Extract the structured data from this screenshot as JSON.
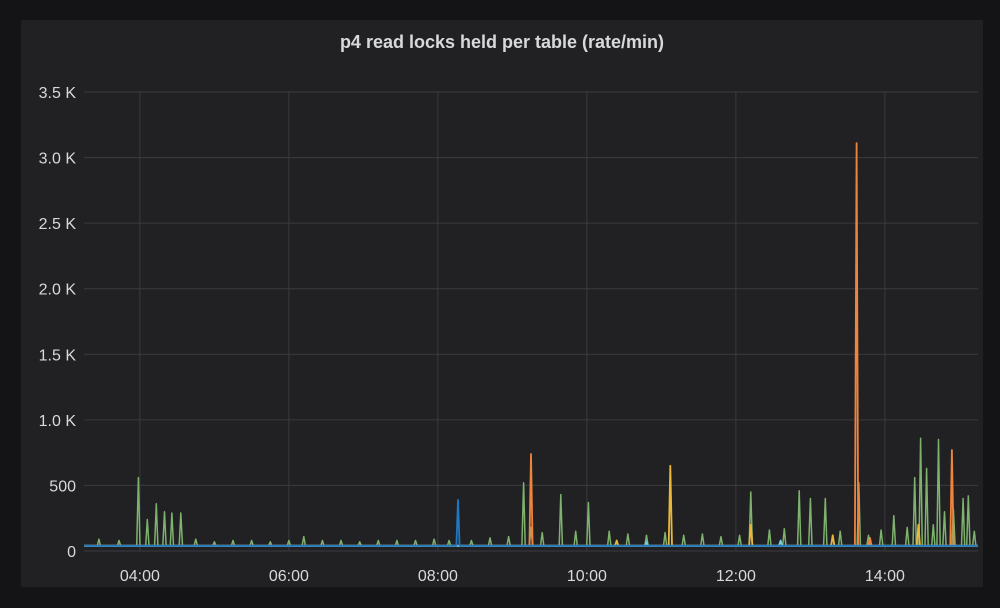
{
  "chart_data": {
    "type": "line",
    "title": "p4 read locks held per table (rate/min)",
    "xlabel": "",
    "ylabel": "",
    "x_unit": "hours (time of day)",
    "xlim": [
      3.25,
      15.25
    ],
    "ylim": [
      0,
      3500
    ],
    "y_ticks": [
      0,
      500,
      1000,
      1500,
      2000,
      2500,
      3000,
      3500
    ],
    "y_tick_labels": [
      "0",
      "500",
      "1.0 K",
      "1.5 K",
      "2.0 K",
      "2.5 K",
      "3.0 K",
      "3.5 K"
    ],
    "x_ticks": [
      4,
      6,
      8,
      10,
      12,
      14
    ],
    "x_tick_labels": [
      "04:00",
      "06:00",
      "08:00",
      "10:00",
      "12:00",
      "14:00"
    ],
    "grid": true,
    "legend": "none",
    "baseline": 40,
    "series": [
      {
        "color": "#7eb26d",
        "peaks": [
          [
            3.45,
            90
          ],
          [
            3.72,
            80
          ],
          [
            3.98,
            560
          ],
          [
            4.1,
            240
          ],
          [
            4.22,
            360
          ],
          [
            4.33,
            300
          ],
          [
            4.43,
            290
          ],
          [
            4.55,
            290
          ],
          [
            4.75,
            90
          ],
          [
            5.0,
            70
          ],
          [
            5.25,
            80
          ],
          [
            5.5,
            80
          ],
          [
            5.75,
            70
          ],
          [
            6.0,
            80
          ],
          [
            6.2,
            110
          ],
          [
            6.45,
            80
          ],
          [
            6.7,
            80
          ],
          [
            6.95,
            70
          ],
          [
            7.2,
            80
          ],
          [
            7.45,
            80
          ],
          [
            7.7,
            80
          ],
          [
            7.95,
            90
          ],
          [
            8.15,
            80
          ],
          [
            8.45,
            80
          ],
          [
            8.7,
            100
          ],
          [
            8.95,
            110
          ],
          [
            9.15,
            520
          ],
          [
            9.25,
            180
          ],
          [
            9.4,
            140
          ],
          [
            9.65,
            430
          ],
          [
            9.85,
            150
          ],
          [
            10.02,
            370
          ],
          [
            10.3,
            150
          ],
          [
            10.55,
            130
          ],
          [
            10.8,
            120
          ],
          [
            11.05,
            140
          ],
          [
            11.3,
            120
          ],
          [
            11.55,
            130
          ],
          [
            11.8,
            110
          ],
          [
            12.05,
            120
          ],
          [
            12.2,
            450
          ],
          [
            12.45,
            160
          ],
          [
            12.65,
            170
          ],
          [
            12.85,
            460
          ],
          [
            13.0,
            400
          ],
          [
            13.2,
            400
          ],
          [
            13.4,
            150
          ],
          [
            13.65,
            520
          ],
          [
            13.78,
            120
          ],
          [
            13.95,
            160
          ],
          [
            14.12,
            270
          ],
          [
            14.3,
            180
          ],
          [
            14.4,
            560
          ],
          [
            14.48,
            860
          ],
          [
            14.56,
            630
          ],
          [
            14.65,
            200
          ],
          [
            14.72,
            850
          ],
          [
            14.8,
            300
          ],
          [
            14.92,
            320
          ],
          [
            15.05,
            400
          ],
          [
            15.12,
            420
          ],
          [
            15.2,
            150
          ]
        ]
      },
      {
        "color": "#ef843c",
        "peaks": [
          [
            9.25,
            740
          ],
          [
            13.62,
            3110
          ],
          [
            14.9,
            770
          ],
          [
            13.8,
            100
          ]
        ]
      },
      {
        "color": "#eab839",
        "peaks": [
          [
            11.12,
            650
          ],
          [
            12.2,
            200
          ],
          [
            14.45,
            200
          ],
          [
            13.3,
            120
          ],
          [
            10.4,
            80
          ]
        ]
      },
      {
        "color": "#6ed0e0",
        "peaks": [
          [
            12.6,
            80
          ],
          [
            10.8,
            70
          ]
        ]
      },
      {
        "color": "#1f78c1",
        "peaks": [
          [
            8.27,
            390
          ]
        ]
      }
    ]
  }
}
